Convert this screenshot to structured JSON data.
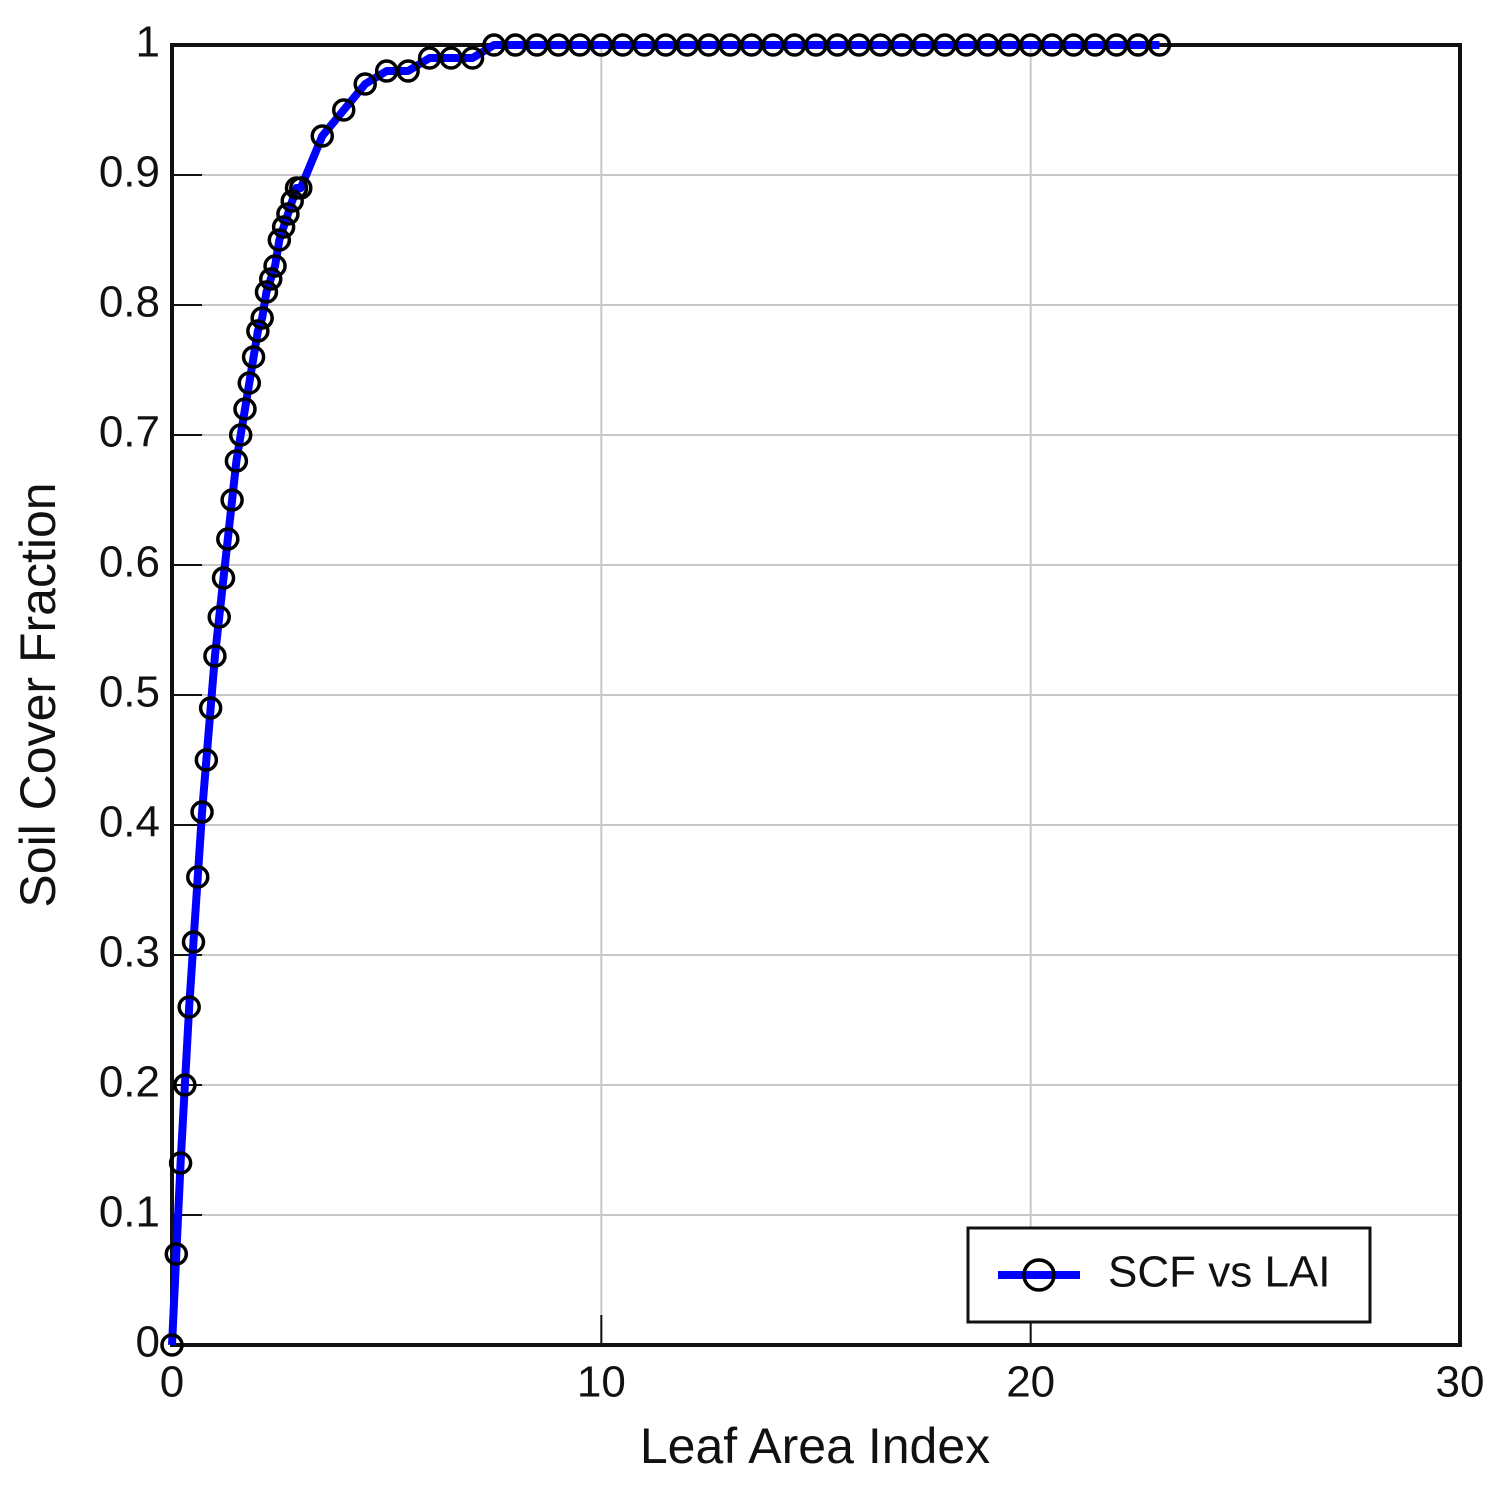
{
  "chart_data": {
    "type": "line",
    "x_label": "Leaf Area Index",
    "y_label": "Soil Cover Fraction",
    "x": [
      0,
      0.1,
      0.2,
      0.3,
      0.4,
      0.5,
      0.6,
      0.7,
      0.8,
      0.9,
      1.0,
      1.1,
      1.2,
      1.3,
      1.4,
      1.5,
      1.6,
      1.7,
      1.8,
      1.9,
      2.0,
      2.1,
      2.2,
      2.3,
      2.4,
      2.5,
      2.6,
      2.7,
      2.8,
      2.9,
      3.0,
      3.5,
      4.0,
      4.5,
      5.0,
      5.5,
      6.0,
      6.5,
      7.0,
      7.5,
      8.0,
      8.5,
      9.0,
      9.5,
      10.0,
      10.5,
      11.0,
      11.5,
      12.0,
      12.5,
      13.0,
      13.5,
      14.0,
      14.5,
      15.0,
      15.5,
      16.0,
      16.5,
      17.0,
      17.5,
      18.0,
      18.5,
      19.0,
      19.5,
      20.0,
      20.5,
      21.0,
      21.5,
      22.0,
      22.5,
      23.0
    ],
    "series": [
      {
        "name": "SCF vs LAI",
        "color": "#0000ff",
        "marker_color": "#000000",
        "values": [
          0,
          0.07,
          0.14,
          0.2,
          0.26,
          0.31,
          0.36,
          0.41,
          0.45,
          0.49,
          0.53,
          0.56,
          0.59,
          0.62,
          0.65,
          0.68,
          0.7,
          0.72,
          0.74,
          0.76,
          0.78,
          0.79,
          0.81,
          0.82,
          0.83,
          0.85,
          0.86,
          0.87,
          0.88,
          0.89,
          0.89,
          0.93,
          0.95,
          0.97,
          0.98,
          0.98,
          0.99,
          0.99,
          0.99,
          1,
          1,
          1,
          1,
          1,
          1,
          1,
          1,
          1,
          1,
          1,
          1,
          1,
          1,
          1,
          1,
          1,
          1,
          1,
          1,
          1,
          1,
          1,
          1,
          1,
          1,
          1,
          1,
          1,
          1,
          1,
          1
        ]
      }
    ],
    "xlim": [
      0,
      30
    ],
    "xticks": [
      0,
      10,
      20,
      30
    ],
    "ylim": [
      0,
      1
    ],
    "yticks": [
      0,
      0.1,
      0.2,
      0.3,
      0.4,
      0.5,
      0.6,
      0.7,
      0.8,
      0.9,
      1
    ],
    "grid": true,
    "legend": "lower right"
  }
}
